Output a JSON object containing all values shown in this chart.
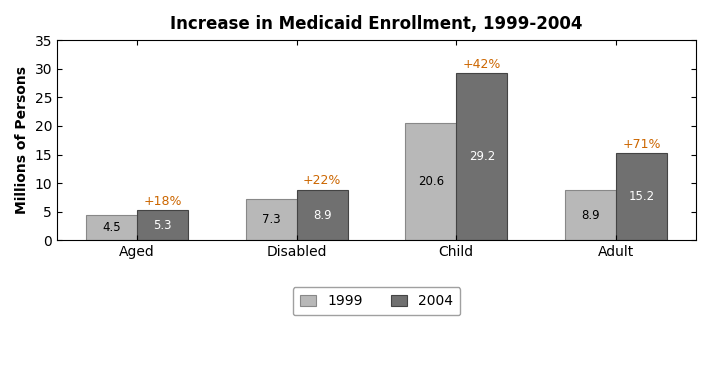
{
  "title": "Increase in Medicaid Enrollment, 1999-2004",
  "ylabel": "Millions of Persons",
  "categories": [
    "Aged",
    "Disabled",
    "Child",
    "Adult"
  ],
  "values_1999": [
    4.5,
    7.3,
    20.6,
    8.9
  ],
  "values_2004": [
    5.3,
    8.9,
    29.2,
    15.2
  ],
  "pct_labels": [
    "+18%",
    "+22%",
    "+42%",
    "+71%"
  ],
  "color_1999": "#b8b8b8",
  "color_2004": "#707070",
  "pct_color": "#cc6600",
  "ylim": [
    0,
    35
  ],
  "yticks": [
    0,
    5,
    10,
    15,
    20,
    25,
    30,
    35
  ],
  "bar_width": 0.32,
  "legend_labels": [
    "1999",
    "2004"
  ],
  "title_fontsize": 12,
  "axis_fontsize": 10,
  "tick_fontsize": 10,
  "bar_value_fontsize": 8.5,
  "pct_fontsize": 9,
  "background_color": "#ffffff",
  "edge_color_1999": "#888888",
  "edge_color_2004": "#444444"
}
